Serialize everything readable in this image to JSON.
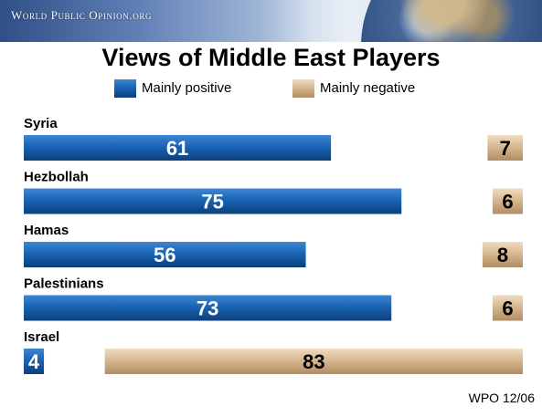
{
  "banner": {
    "brand": "World Public Opinion.org"
  },
  "source": "WPO 12/06",
  "colors": {
    "positive": "#1a64b4",
    "negative": "#d4b48c"
  },
  "chart_data": {
    "type": "bar",
    "title": "Views of Middle East Players",
    "categories": [
      "Syria",
      "Hezbollah",
      "Hamas",
      "Palestinians",
      "Israel"
    ],
    "series": [
      {
        "name": "Mainly positive",
        "values": [
          61,
          75,
          56,
          73,
          4
        ]
      },
      {
        "name": "Mainly negative",
        "values": [
          7,
          6,
          8,
          6,
          83
        ]
      }
    ],
    "legend": "top"
  }
}
